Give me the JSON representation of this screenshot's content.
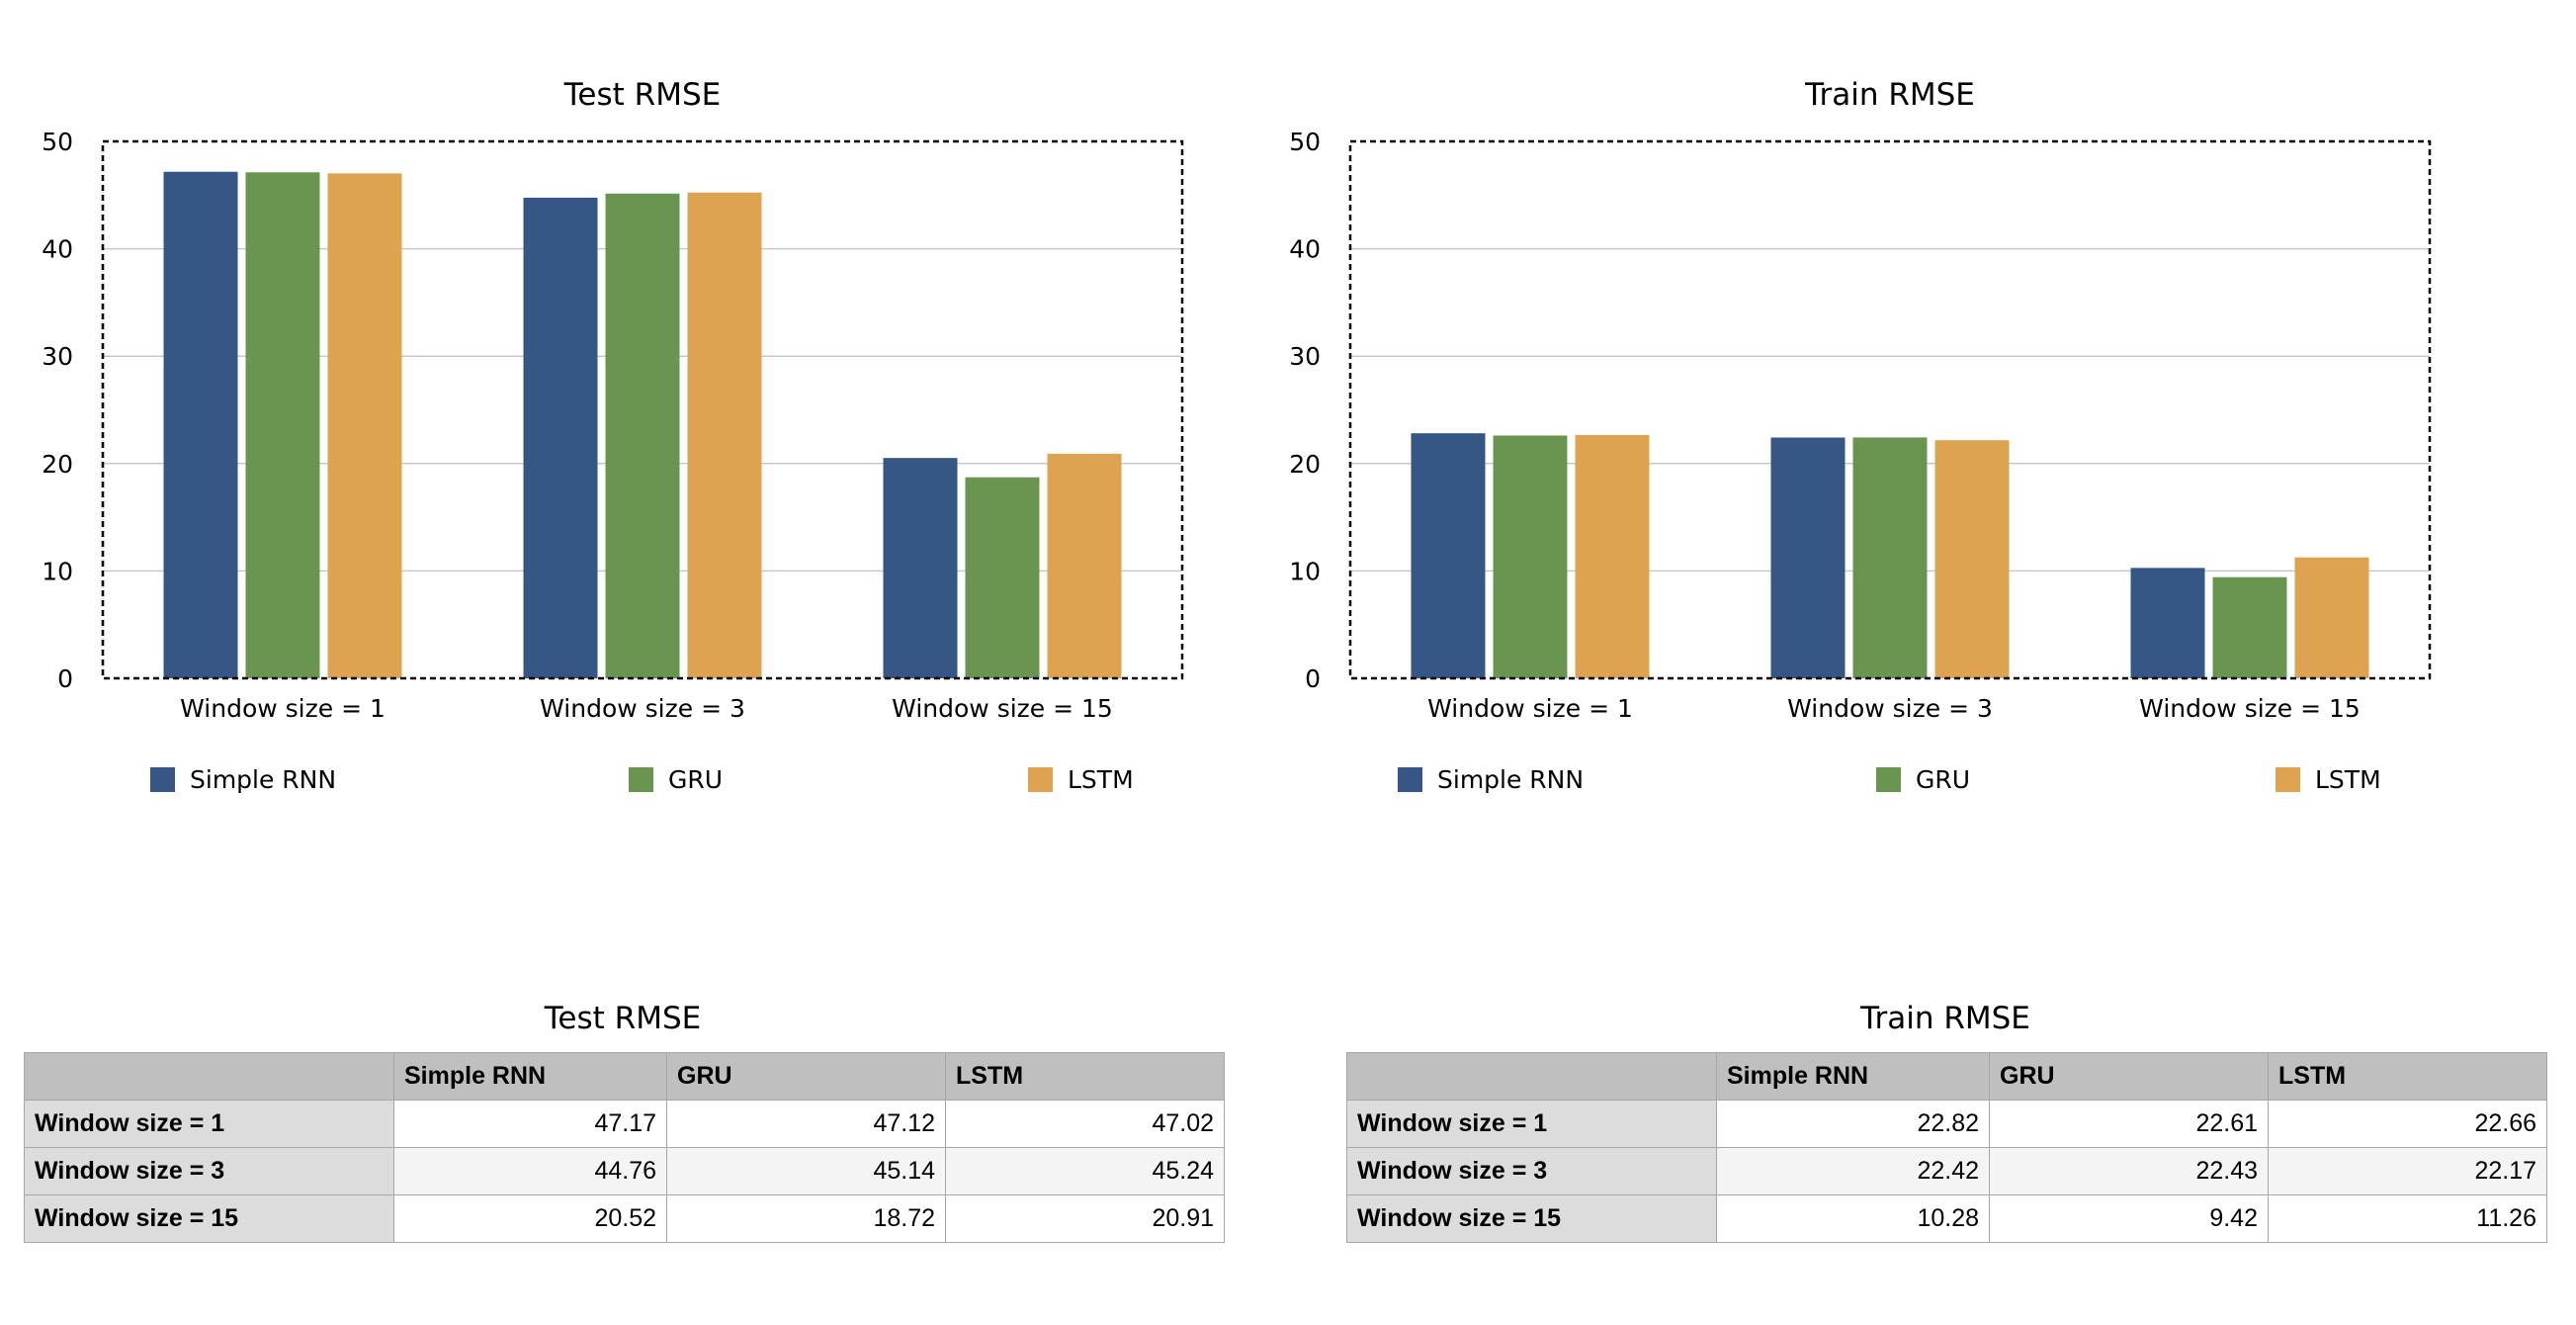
{
  "chart_data": [
    {
      "type": "bar",
      "title": "Test RMSE",
      "categories": [
        "Window size = 1",
        "Window size = 3",
        "Window size = 15"
      ],
      "series": [
        {
          "name": "Simple RNN",
          "values": [
            47.17,
            44.76,
            20.52
          ]
        },
        {
          "name": "GRU",
          "values": [
            47.12,
            45.14,
            18.72
          ]
        },
        {
          "name": "LSTM",
          "values": [
            47.02,
            45.24,
            20.91
          ]
        }
      ],
      "ylim": [
        0,
        50
      ],
      "yticks": [
        0,
        10,
        20,
        30,
        40,
        50
      ],
      "grid": true,
      "legend": "bottom"
    },
    {
      "type": "bar",
      "title": "Train RMSE",
      "categories": [
        "Window size = 1",
        "Window size = 3",
        "Window size = 15"
      ],
      "series": [
        {
          "name": "Simple RNN",
          "values": [
            22.82,
            22.42,
            10.28
          ]
        },
        {
          "name": "GRU",
          "values": [
            22.61,
            22.43,
            9.42
          ]
        },
        {
          "name": "LSTM",
          "values": [
            22.66,
            22.17,
            11.26
          ]
        }
      ],
      "ylim": [
        0,
        50
      ],
      "yticks": [
        0,
        10,
        20,
        30,
        40,
        50
      ],
      "grid": true,
      "legend": "bottom"
    }
  ],
  "series_colors": [
    "#365785",
    "#6a9550",
    "#dea350"
  ],
  "tables": [
    {
      "title": "Test RMSE",
      "columns": [
        "",
        "Simple RNN",
        "GRU",
        "LSTM"
      ],
      "rows": [
        {
          "label": "Window size = 1",
          "values": [
            "47.17",
            "47.12",
            "47.02"
          ]
        },
        {
          "label": "Window size = 3",
          "values": [
            "44.76",
            "45.14",
            "45.24"
          ]
        },
        {
          "label": "Window size = 15",
          "values": [
            "20.52",
            "18.72",
            "20.91"
          ]
        }
      ]
    },
    {
      "title": "Train RMSE",
      "columns": [
        "",
        "Simple RNN",
        "GRU",
        "LSTM"
      ],
      "rows": [
        {
          "label": "Window size = 1",
          "values": [
            "22.82",
            "22.61",
            "22.66"
          ]
        },
        {
          "label": "Window size = 3",
          "values": [
            "22.42",
            "22.43",
            "22.17"
          ]
        },
        {
          "label": "Window size = 15",
          "values": [
            "10.28",
            "9.42",
            "11.26"
          ]
        }
      ]
    }
  ]
}
